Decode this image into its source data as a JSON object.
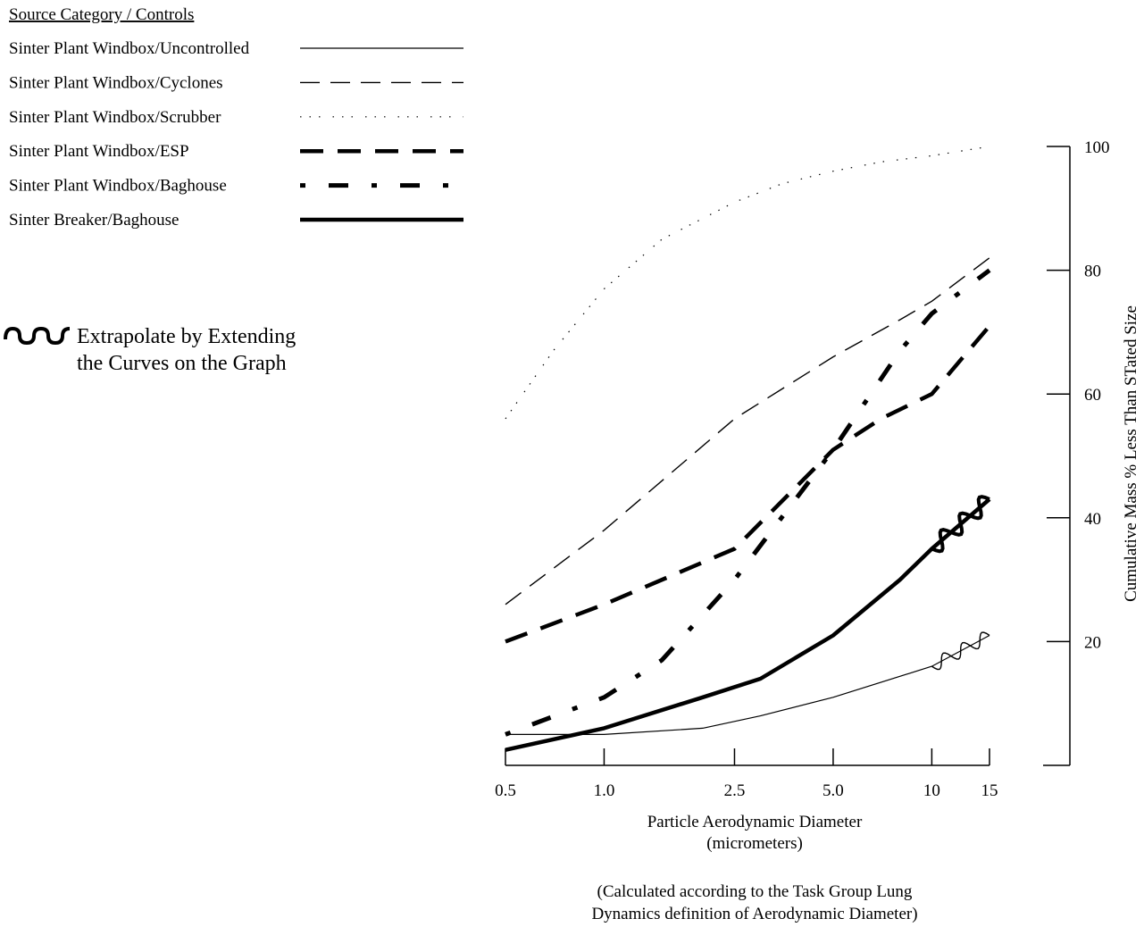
{
  "legend": {
    "title": "Source Category / Controls",
    "extrapolate_text_line1": "Extrapolate by Extending",
    "extrapolate_text_line2": "the Curves on the Graph"
  },
  "captions": {
    "xlabel_line1": "Particle Aerodynamic Diameter",
    "xlabel_line2": "(micrometers)",
    "note_line1": "(Calculated according to the Task Group Lung",
    "note_line2": "Dynamics definition of Aerodynamic Diameter)",
    "ylabel": "Cumulative Mass % Less Than STated Size"
  },
  "chart_data": {
    "type": "line",
    "title": "",
    "xlabel": "Particle Aerodynamic Diameter (micrometers)",
    "ylabel": "Cumulative Mass % Less Than STated Size",
    "x_scale": "log",
    "x_ticks": [
      0.5,
      1.0,
      2.5,
      5.0,
      10,
      15
    ],
    "x_tick_labels": [
      "0.5",
      "1.0",
      "2.5",
      "5.0",
      "10",
      "15"
    ],
    "y_ticks": [
      20,
      40,
      60,
      80,
      100
    ],
    "y_tick_labels": [
      "20",
      "40",
      "60",
      "80",
      "100"
    ],
    "xlim": [
      0.5,
      15
    ],
    "ylim": [
      0,
      100
    ],
    "y_axis_side": "right",
    "grid": false,
    "legend_position": "top-left",
    "series": [
      {
        "name": "Sinter Plant Windbox/Uncontrolled",
        "style": "thin-solid",
        "x": [
          0.5,
          1.0,
          2.0,
          3.0,
          5.0,
          10,
          15
        ],
        "y": [
          5,
          5,
          6,
          8,
          11,
          16,
          21
        ],
        "extrapolated_from": 10
      },
      {
        "name": "Sinter Plant Windbox/Cyclones",
        "style": "thin-dashed",
        "x": [
          0.5,
          1.0,
          2.5,
          5.0,
          8.0,
          10,
          15
        ],
        "y": [
          26,
          38,
          56,
          66,
          72,
          75,
          82
        ]
      },
      {
        "name": "Sinter Plant Windbox/Scrubber",
        "style": "dash-dot-dot",
        "x": [
          0.5,
          0.7,
          1.0,
          1.5,
          2.5,
          3.5,
          5.0,
          7.0,
          10,
          15
        ],
        "y": [
          56,
          67,
          77,
          85,
          91,
          94,
          96,
          97.5,
          98.5,
          100
        ]
      },
      {
        "name": "Sinter Plant Windbox/ESP",
        "style": "heavy-dashed",
        "x": [
          0.5,
          1.0,
          2.5,
          5.0,
          7.0,
          10,
          15
        ],
        "y": [
          20,
          26,
          35,
          51,
          56,
          60,
          71
        ]
      },
      {
        "name": "Sinter Plant Windbox/Baghouse",
        "style": "heavy-dash-dot",
        "x": [
          0.5,
          1.0,
          1.5,
          2.5,
          5.0,
          8.0,
          10,
          15
        ],
        "y": [
          5,
          11,
          17,
          30,
          51,
          67,
          73,
          80
        ]
      },
      {
        "name": "Sinter Breaker/Baghouse",
        "style": "heavy-solid",
        "x": [
          0.5,
          1.0,
          2.0,
          3.0,
          5.0,
          8.0,
          10,
          15
        ],
        "y": [
          2.5,
          6,
          11,
          14,
          21,
          30,
          35,
          43
        ],
        "extrapolated_from": 10
      }
    ]
  }
}
